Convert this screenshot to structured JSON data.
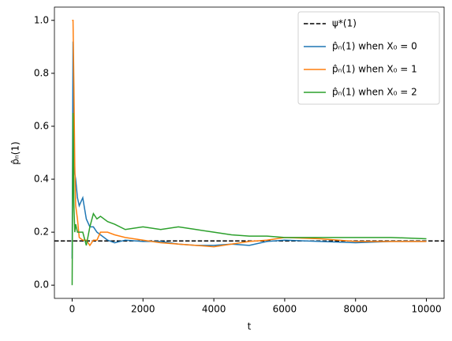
{
  "chart_data": {
    "type": "line",
    "xlabel": "t",
    "ylabel": "p̂ₙ(1)",
    "x": [
      0,
      25,
      50,
      75,
      100,
      150,
      200,
      300,
      400,
      500,
      600,
      700,
      800,
      1000,
      1200,
      1500,
      2000,
      2500,
      3000,
      3500,
      4000,
      4500,
      5000,
      5500,
      6000,
      7000,
      8000,
      9000,
      10000
    ],
    "reference_line": {
      "name": "ψ*(1)",
      "value": 0.1667,
      "color": "#000000",
      "dashed": true
    },
    "series": [
      {
        "name": "p̂ₙ(1) when X₀ = 0",
        "color": "#1f77b4",
        "values": [
          0.1,
          0.92,
          0.5,
          0.42,
          0.4,
          0.33,
          0.3,
          0.33,
          0.25,
          0.22,
          0.22,
          0.2,
          0.19,
          0.17,
          0.16,
          0.17,
          0.165,
          0.165,
          0.155,
          0.15,
          0.15,
          0.155,
          0.15,
          0.165,
          0.17,
          0.165,
          0.16,
          0.165,
          0.165
        ]
      },
      {
        "name": "p̂ₙ(1) when X₀ = 1",
        "color": "#ff7f0e",
        "values": [
          1.0,
          1.0,
          0.75,
          0.45,
          0.3,
          0.25,
          0.18,
          0.17,
          0.17,
          0.15,
          0.17,
          0.17,
          0.2,
          0.2,
          0.19,
          0.18,
          0.17,
          0.16,
          0.155,
          0.15,
          0.145,
          0.155,
          0.165,
          0.17,
          0.18,
          0.175,
          0.165,
          0.165,
          0.165
        ]
      },
      {
        "name": "p̂ₙ(1) when X₀ = 2",
        "color": "#2ca02c",
        "values": [
          0.0,
          0.65,
          0.3,
          0.2,
          0.23,
          0.2,
          0.2,
          0.2,
          0.15,
          0.22,
          0.27,
          0.25,
          0.26,
          0.24,
          0.23,
          0.21,
          0.22,
          0.21,
          0.22,
          0.21,
          0.2,
          0.19,
          0.185,
          0.185,
          0.18,
          0.18,
          0.18,
          0.18,
          0.175
        ]
      }
    ],
    "xlim": [
      -500,
      10500
    ],
    "xticks": [
      0,
      2000,
      4000,
      6000,
      8000,
      10000
    ],
    "ylim": [
      -0.05,
      1.05
    ],
    "yticks": [
      {
        "value": 0,
        "label": "0.0"
      },
      0.2,
      0.4,
      0.6,
      0.8,
      {
        "value": 1,
        "label": "1.0"
      }
    ],
    "legend": "upper right"
  }
}
